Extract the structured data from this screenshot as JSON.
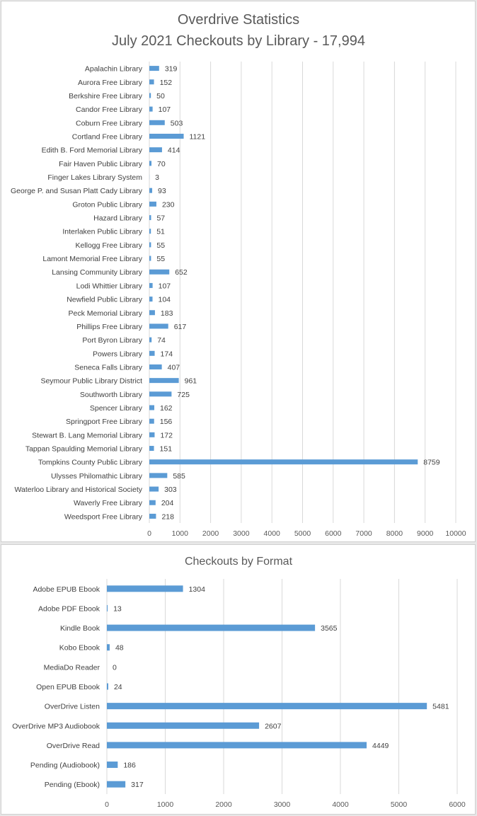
{
  "colors": {
    "bar": "#5b9bd5",
    "grid": "#d9d9d9",
    "text": "#404040",
    "title": "#595959"
  },
  "chart_data": [
    {
      "type": "bar",
      "orientation": "horizontal",
      "title": "Overdrive Statistics",
      "subtitle": "July 2021 Checkouts by Library - 17,994",
      "categories": [
        "Apalachin Library",
        "Aurora Free Library",
        "Berkshire Free Library",
        "Candor Free Library",
        "Coburn Free Library",
        "Cortland Free Library",
        "Edith B. Ford Memorial Library",
        "Fair Haven Public Library",
        "Finger Lakes Library System",
        "George P. and Susan Platt Cady Library",
        "Groton Public Library",
        "Hazard Library",
        "Interlaken Public Library",
        "Kellogg Free Library",
        "Lamont Memorial Free Library",
        "Lansing Community Library",
        "Lodi Whittier Library",
        "Newfield Public Library",
        "Peck Memorial Library",
        "Phillips Free Library",
        "Port Byron Library",
        "Powers Library",
        "Seneca Falls Library",
        "Seymour Public Library District",
        "Southworth Library",
        "Spencer Library",
        "Springport Free Library",
        "Stewart B. Lang Memorial Library",
        "Tappan Spaulding Memorial Library",
        "Tompkins County Public Library",
        "Ulysses Philomathic Library",
        "Waterloo Library and Historical Society",
        "Waverly Free Library",
        "Weedsport Free Library"
      ],
      "values": [
        319,
        152,
        50,
        107,
        503,
        1121,
        414,
        70,
        3,
        93,
        230,
        57,
        51,
        55,
        55,
        652,
        107,
        104,
        183,
        617,
        74,
        174,
        407,
        961,
        725,
        162,
        156,
        172,
        151,
        8759,
        585,
        303,
        204,
        218
      ],
      "xlim": [
        0,
        10000
      ],
      "xticks": [
        "0",
        "1000",
        "2000",
        "3000",
        "4000",
        "5000",
        "6000",
        "7000",
        "8000",
        "9000",
        "10000"
      ],
      "grid": true,
      "data_labels": true
    },
    {
      "type": "bar",
      "orientation": "horizontal",
      "title": "Checkouts by Format",
      "categories": [
        "Adobe EPUB Ebook",
        "Adobe PDF Ebook",
        "Kindle Book",
        "Kobo Ebook",
        "MediaDo Reader",
        "Open EPUB Ebook",
        "OverDrive Listen",
        "OverDrive MP3 Audiobook",
        "OverDrive Read",
        "Pending (Audiobook)",
        "Pending (Ebook)"
      ],
      "values": [
        1304,
        13,
        3565,
        48,
        0,
        24,
        5481,
        2607,
        4449,
        186,
        317
      ],
      "xlim": [
        0,
        6000
      ],
      "xticks": [
        "0",
        "1000",
        "2000",
        "3000",
        "4000",
        "5000",
        "6000"
      ],
      "grid": true,
      "data_labels": true
    }
  ]
}
